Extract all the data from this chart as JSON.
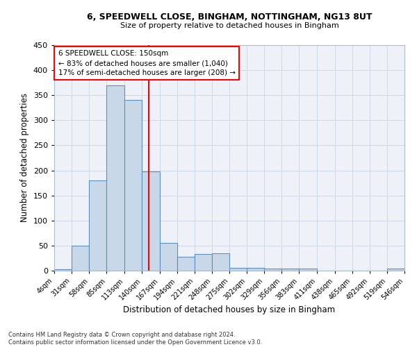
{
  "title1": "6, SPEEDWELL CLOSE, BINGHAM, NOTTINGHAM, NG13 8UT",
  "title2": "Size of property relative to detached houses in Bingham",
  "xlabel": "Distribution of detached houses by size in Bingham",
  "ylabel": "Number of detached properties",
  "bar_color": "#c8d8e8",
  "bar_edge_color": "#5a8fc0",
  "bin_edges": [
    4,
    31,
    58,
    85,
    113,
    140,
    167,
    194,
    221,
    248,
    275,
    302,
    329,
    356,
    383,
    411,
    438,
    465,
    492,
    519,
    546
  ],
  "bin_labels": [
    "4sqm",
    "31sqm",
    "58sqm",
    "85sqm",
    "113sqm",
    "140sqm",
    "167sqm",
    "194sqm",
    "221sqm",
    "248sqm",
    "275sqm",
    "302sqm",
    "329sqm",
    "356sqm",
    "383sqm",
    "411sqm",
    "438sqm",
    "465sqm",
    "492sqm",
    "519sqm",
    "546sqm"
  ],
  "bar_heights": [
    3,
    50,
    180,
    370,
    340,
    198,
    55,
    28,
    33,
    35,
    6,
    6,
    4,
    4,
    4,
    0,
    0,
    0,
    0,
    4
  ],
  "vline_x": 150,
  "vline_color": "red",
  "annotation_line1": "6 SPEEDWELL CLOSE: 150sqm",
  "annotation_line2": "← 83% of detached houses are smaller (1,040)",
  "annotation_line3": "17% of semi-detached houses are larger (208) →",
  "annotation_box_color": "white",
  "annotation_box_edge_color": "red",
  "ylim": [
    0,
    450
  ],
  "yticks": [
    0,
    50,
    100,
    150,
    200,
    250,
    300,
    350,
    400,
    450
  ],
  "grid_color": "#d0d8e8",
  "background_color": "#eef2f8",
  "footer_line1": "Contains HM Land Registry data © Crown copyright and database right 2024.",
  "footer_line2": "Contains public sector information licensed under the Open Government Licence v3.0."
}
